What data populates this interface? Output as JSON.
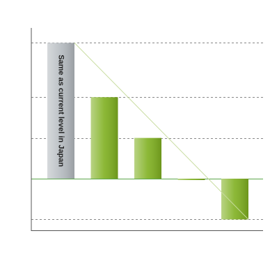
{
  "chart_data": {
    "type": "bar",
    "annotation": "Same as current level in Japan",
    "categories": [
      null,
      null,
      null,
      null,
      null
    ],
    "values": [
      100,
      60,
      30,
      -1,
      -30
    ],
    "colors": [
      "#b4babf",
      "#7fb020",
      "#7fb020",
      "#7fb020",
      "#7fb020"
    ],
    "trend_color": "#c8dca0",
    "zero_line_color": "#5aa64a",
    "ylim": [
      -38,
      111
    ],
    "yticks": [
      -30,
      0,
      30,
      60,
      100
    ],
    "grid": true
  }
}
